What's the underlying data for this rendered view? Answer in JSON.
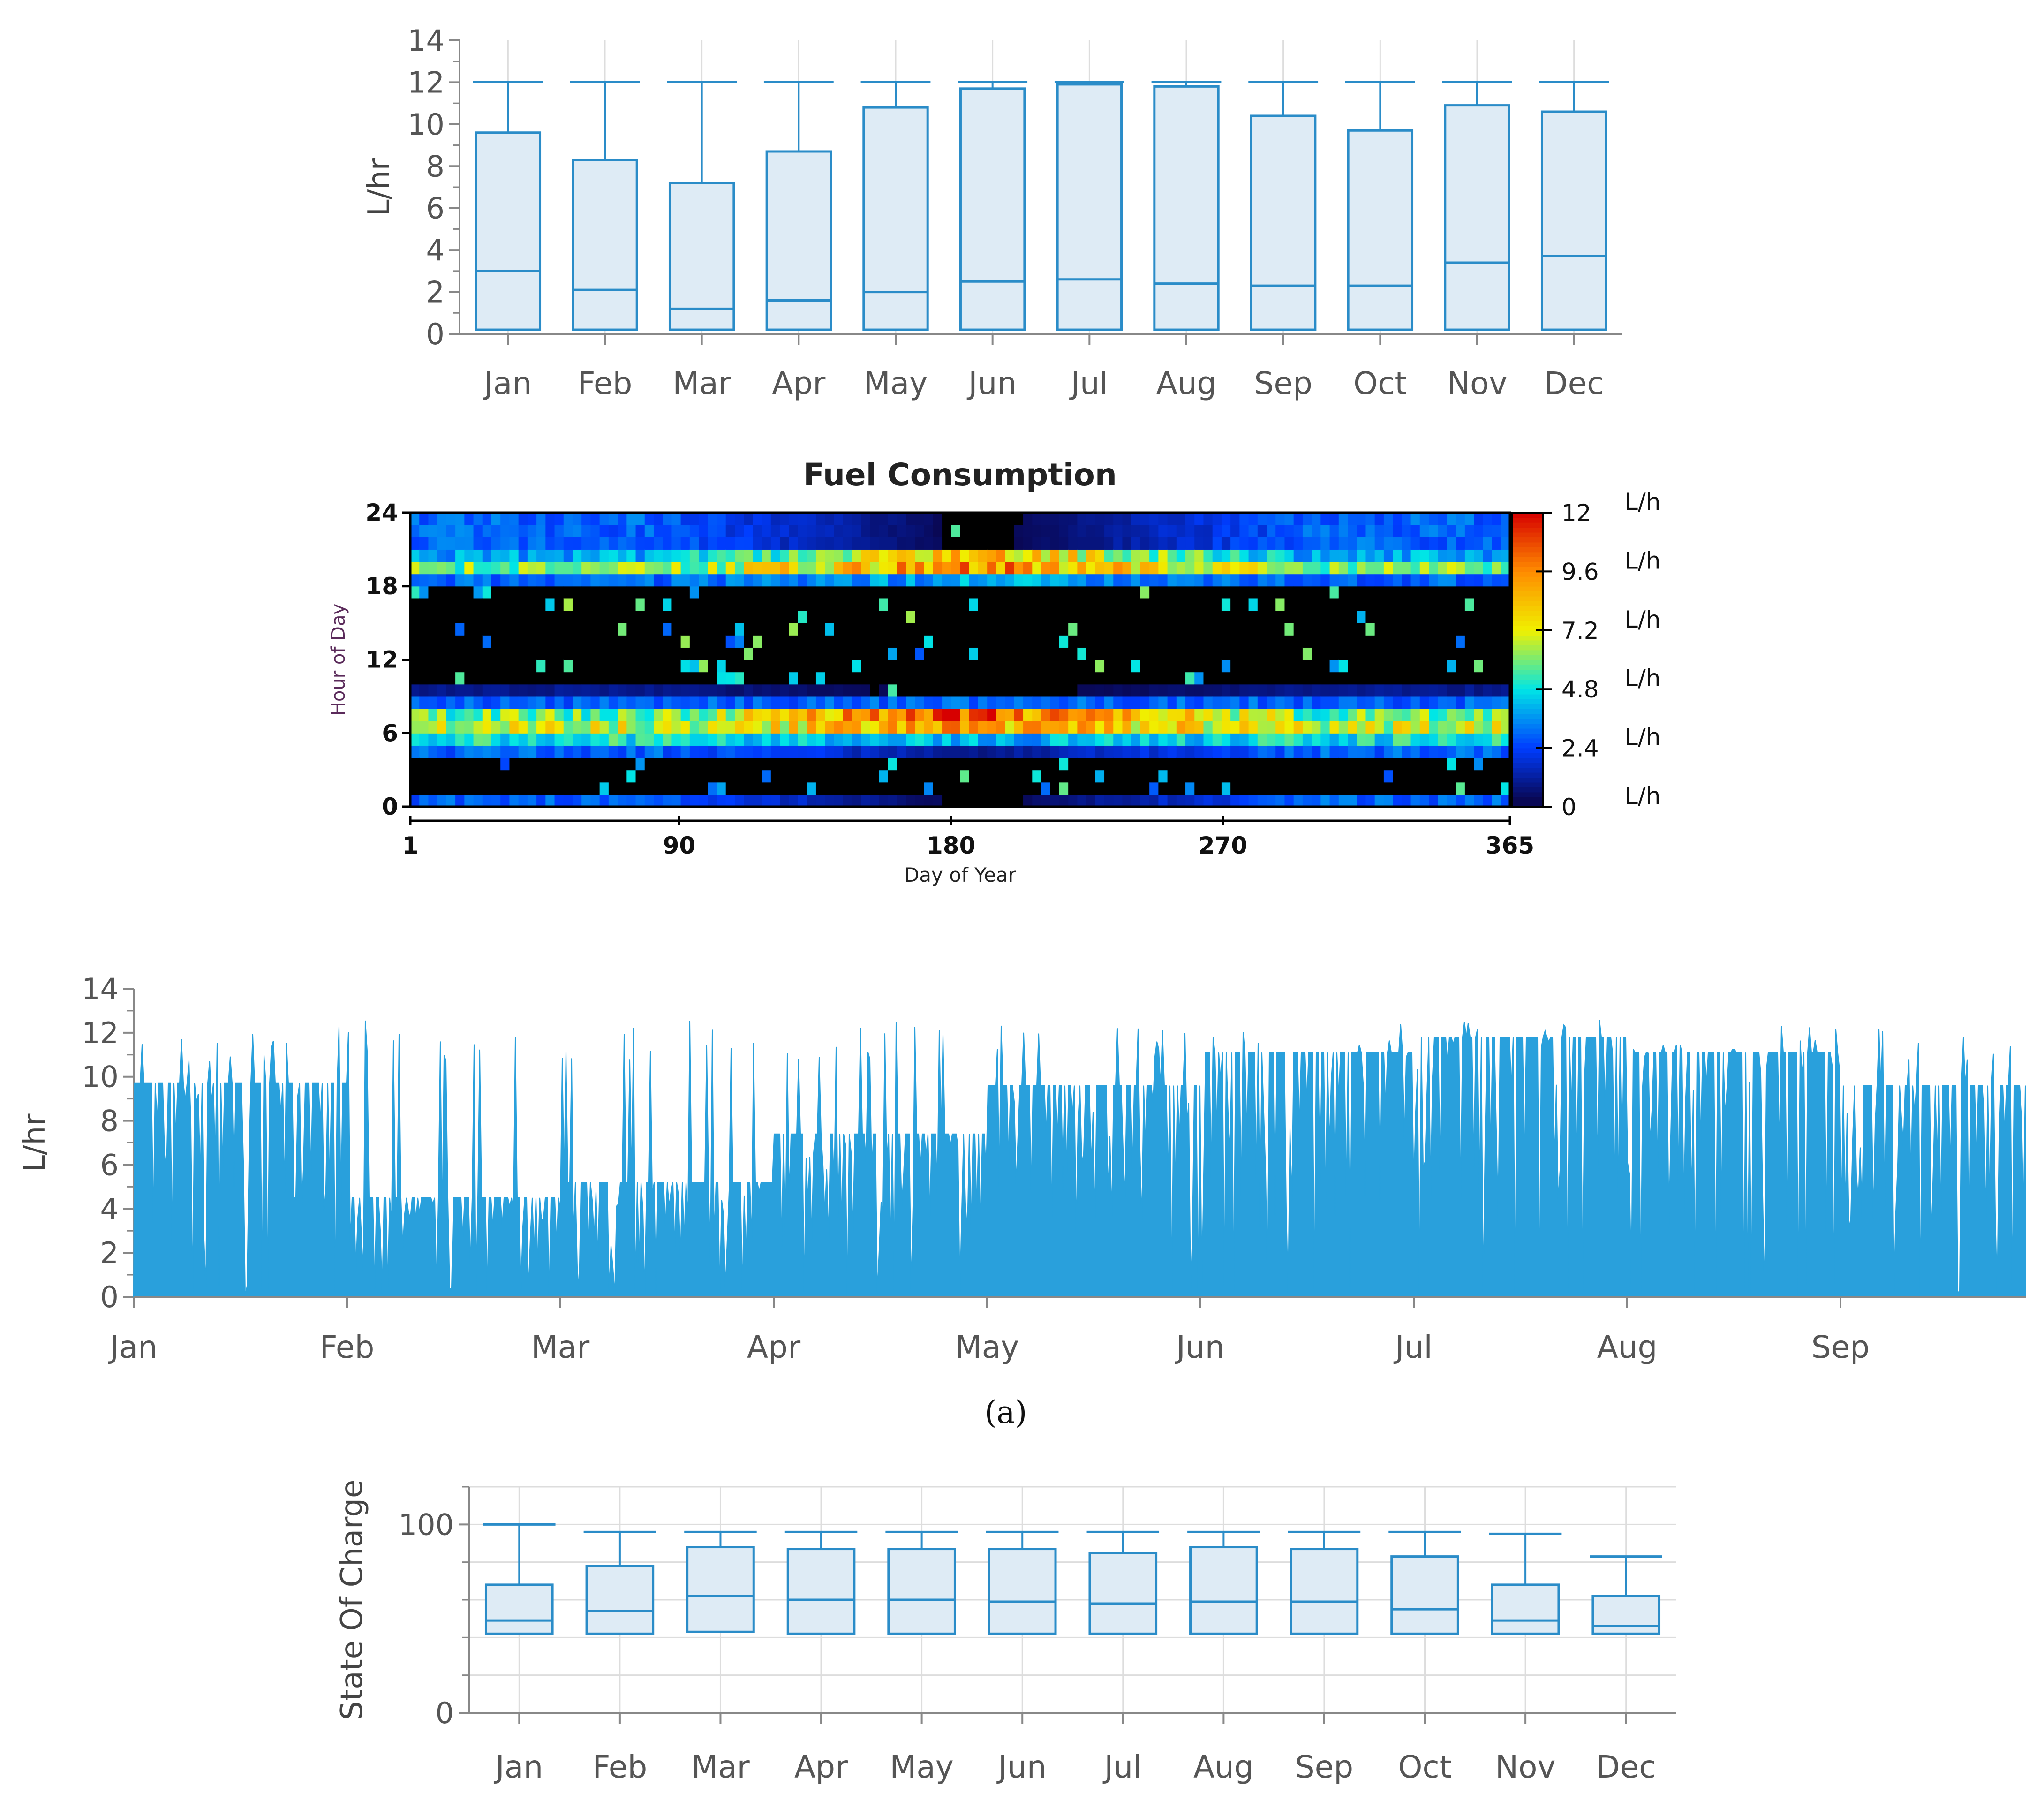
{
  "caption": "(a)",
  "colors": {
    "accent": "#2a8cc8",
    "box_fill": "#deebf5",
    "line_fill": "#29a0dc",
    "grid": "#dddddd"
  },
  "chart_data": [
    {
      "id": "fuel-monthly-box",
      "type": "box",
      "ylabel": "L/hr",
      "ylim": [
        0,
        14
      ],
      "yticks": [
        "0",
        "2",
        "4",
        "6",
        "8",
        "10",
        "12",
        "14"
      ],
      "categories": [
        "Jan",
        "Feb",
        "Mar",
        "Apr",
        "May",
        "Jun",
        "Jul",
        "Aug",
        "Sep",
        "Oct",
        "Nov",
        "Dec"
      ],
      "min": [
        0.2,
        0.2,
        0.2,
        0.2,
        0.2,
        0.2,
        0.2,
        0.2,
        0.2,
        0.2,
        0.2,
        0.2
      ],
      "q1": [
        0.2,
        0.2,
        0.2,
        0.2,
        0.2,
        0.2,
        0.2,
        0.2,
        0.2,
        0.2,
        0.2,
        0.2
      ],
      "median": [
        3.0,
        2.1,
        1.2,
        1.6,
        2.0,
        2.5,
        2.6,
        2.4,
        2.3,
        2.3,
        3.4,
        3.7
      ],
      "q3": [
        9.6,
        8.3,
        7.2,
        8.7,
        10.8,
        11.7,
        11.9,
        11.8,
        10.4,
        9.7,
        10.9,
        10.6
      ],
      "max": [
        12,
        12,
        12,
        12,
        12,
        12,
        12,
        12,
        12,
        12,
        12,
        12
      ]
    },
    {
      "id": "fuel-heatmap",
      "type": "heatmap",
      "title": "Fuel Consumption",
      "xlabel": "Day of Year",
      "ylabel": "Hour of Day",
      "xticks": [
        "1",
        "90",
        "180",
        "270",
        "365"
      ],
      "yticks": [
        "0",
        "6",
        "12",
        "18",
        "24"
      ],
      "xlim": [
        1,
        365
      ],
      "ylim": [
        0,
        24
      ],
      "colorbar_ticks": [
        "0",
        "2.4",
        "4.8",
        "7.2",
        "9.6",
        "12"
      ],
      "colorbar_units": [
        "L/h",
        "L/h",
        "L/h",
        "L/h",
        "L/h",
        "L/h"
      ],
      "zlim": [
        0,
        12
      ],
      "hour_profile_shoulder": [
        3,
        0,
        0,
        0,
        3,
        5,
        7,
        6,
        3,
        1,
        0,
        0,
        0,
        0,
        0,
        0,
        0,
        0,
        3,
        6,
        4,
        3,
        3,
        3
      ],
      "hour_profile_summer": [
        0,
        0,
        0,
        0,
        1,
        4,
        9,
        11,
        3,
        0,
        0,
        0,
        0,
        0,
        0,
        0,
        0,
        0,
        4,
        10,
        9,
        0,
        0,
        0
      ]
    },
    {
      "id": "fuel-hourly-series",
      "type": "area",
      "ylabel": "L/hr",
      "ylim": [
        0,
        14
      ],
      "yticks": [
        "0",
        "2",
        "4",
        "6",
        "8",
        "10",
        "12",
        "14"
      ],
      "months": [
        "Jan",
        "Feb",
        "Mar",
        "Apr",
        "May",
        "Jun",
        "Jul",
        "Aug",
        "Sep"
      ],
      "monthly_peak": [
        9.7,
        4.5,
        5.2,
        7.4,
        9.6,
        11.1,
        11.8,
        11.1,
        9.6
      ],
      "spike_max": 12.6
    },
    {
      "id": "soc-monthly-box",
      "type": "box",
      "ylabel": "State Of Charge",
      "ylim": [
        0,
        120
      ],
      "yticks": [
        "0",
        "100"
      ],
      "categories": [
        "Jan",
        "Feb",
        "Mar",
        "Apr",
        "May",
        "Jun",
        "Jul",
        "Aug",
        "Sep",
        "Oct",
        "Nov",
        "Dec"
      ],
      "min": [
        42,
        42,
        42,
        42,
        42,
        42,
        42,
        42,
        42,
        42,
        42,
        42
      ],
      "q1": [
        42,
        42,
        43,
        42,
        42,
        42,
        42,
        42,
        42,
        42,
        42,
        42
      ],
      "median": [
        49,
        54,
        62,
        60,
        60,
        59,
        58,
        59,
        59,
        55,
        49,
        46
      ],
      "q3": [
        68,
        78,
        88,
        87,
        87,
        87,
        85,
        88,
        87,
        83,
        68,
        62
      ],
      "max": [
        100,
        96,
        96,
        96,
        96,
        96,
        96,
        96,
        96,
        96,
        95,
        83
      ]
    }
  ]
}
